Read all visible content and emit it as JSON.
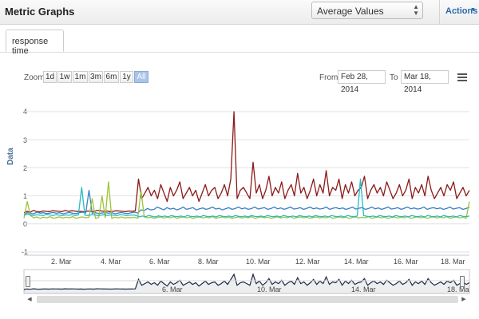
{
  "header": {
    "title": "Metric Graphs",
    "dropdown_value": "Average Values",
    "actions_label": "Actions"
  },
  "tabs": [
    {
      "label": "response time"
    }
  ],
  "toolbar": {
    "zoom_label": "Zoom",
    "zoom_buttons": [
      "1d",
      "1w",
      "1m",
      "3m",
      "6m",
      "1y",
      "All"
    ],
    "active_zoom": "All",
    "from_label": "From",
    "from_value": "Feb 28, 2014",
    "to_label": "To",
    "to_value": "Mar 18, 2014",
    "menu_icon": "menu-icon"
  },
  "navigator": {
    "ticks": [
      "6. Mar",
      "10. Mar",
      "14. Mar",
      "18. Ma"
    ]
  },
  "chart_data": {
    "type": "line",
    "ylabel": "Data",
    "ylim": [
      -1,
      4
    ],
    "yticks": [
      "4",
      "3",
      "2",
      "1",
      "0",
      "-1"
    ],
    "xticks": [
      "2. Mar",
      "4. Mar",
      "6. Mar",
      "8. Mar",
      "10. Mar",
      "12. Mar",
      "14. Mar",
      "16. Mar",
      "18. Mar"
    ],
    "grid": true,
    "series": [
      {
        "color": "#8b1a1a",
        "values": [
          0.4,
          0.45,
          0.42,
          0.48,
          0.44,
          0.43,
          0.46,
          0.45,
          0.44,
          0.47,
          0.46,
          0.45,
          0.44,
          0.48,
          0.45,
          0.47,
          0.46,
          0.44,
          0.45,
          0.43,
          0.46,
          0.45,
          0.44,
          0.48,
          0.47,
          0.45,
          0.46,
          0.44,
          0.45,
          0.47,
          0.46,
          0.45,
          0.44,
          0.46,
          0.45,
          0.47,
          1.6,
          0.9,
          1.1,
          1.3,
          1.0,
          1.2,
          0.9,
          1.4,
          1.1,
          0.8,
          1.3,
          1.0,
          1.2,
          1.5,
          0.9,
          1.1,
          1.3,
          1.0,
          1.2,
          0.8,
          1.1,
          1.4,
          1.0,
          1.2,
          1.3,
          0.9,
          1.1,
          1.4,
          1.0,
          1.6,
          4.0,
          0.9,
          1.2,
          1.3,
          1.1,
          0.9,
          2.2,
          1.1,
          1.4,
          0.9,
          1.2,
          1.7,
          1.0,
          1.3,
          1.1,
          1.5,
          0.9,
          1.2,
          1.4,
          1.0,
          1.8,
          1.1,
          1.3,
          0.9,
          1.2,
          1.6,
          1.0,
          1.4,
          1.1,
          1.9,
          1.0,
          1.3,
          1.2,
          1.6,
          0.9,
          1.4,
          1.1,
          1.5,
          1.0,
          1.2,
          1.3,
          1.7,
          0.9,
          1.2,
          1.4,
          1.1,
          1.3,
          1.0,
          1.5,
          1.2,
          0.9,
          1.1,
          1.4,
          1.0,
          1.2,
          1.6,
          0.9,
          1.3,
          1.1,
          1.4,
          1.0,
          1.7,
          1.2,
          0.9,
          1.1,
          1.3,
          1.0,
          1.4,
          1.2,
          1.5,
          0.9,
          1.1,
          1.3,
          1.0,
          1.2
        ]
      },
      {
        "color": "#3b82c4",
        "values": [
          0.35,
          0.4,
          0.38,
          0.36,
          0.42,
          0.38,
          0.4,
          0.37,
          0.39,
          0.41,
          0.38,
          0.4,
          0.36,
          0.39,
          0.41,
          0.38,
          0.37,
          0.4,
          0.42,
          0.39,
          1.2,
          0.38,
          0.4,
          0.37,
          0.39,
          0.41,
          0.38,
          0.4,
          0.36,
          0.39,
          0.41,
          0.38,
          0.37,
          0.4,
          0.42,
          0.39,
          0.5,
          0.48,
          0.55,
          0.5,
          0.52,
          0.6,
          0.55,
          0.5,
          0.58,
          0.53,
          0.56,
          0.5,
          0.54,
          0.6,
          0.52,
          0.55,
          0.58,
          0.5,
          0.54,
          0.57,
          0.52,
          0.55,
          0.6,
          0.53,
          0.56,
          0.5,
          0.54,
          0.58,
          0.52,
          0.55,
          0.6,
          0.54,
          0.57,
          0.52,
          0.55,
          0.6,
          0.53,
          0.56,
          0.58,
          0.52,
          0.55,
          0.6,
          0.54,
          0.57,
          0.52,
          0.56,
          0.6,
          0.53,
          0.55,
          0.58,
          0.52,
          0.56,
          0.6,
          0.54,
          0.57,
          0.53,
          0.55,
          0.6,
          0.52,
          0.56,
          0.58,
          0.54,
          0.57,
          0.52,
          0.55,
          0.6,
          0.53,
          0.56,
          0.58,
          0.52,
          0.55,
          0.6,
          0.54,
          0.57,
          0.52,
          0.56,
          0.6,
          0.53,
          0.55,
          0.58,
          0.52,
          0.56,
          0.6,
          0.54,
          0.57,
          0.53,
          0.55,
          0.6,
          0.52,
          0.56,
          0.58,
          0.54,
          0.57,
          0.52,
          0.55,
          0.6,
          0.53,
          0.56,
          0.58,
          0.52,
          0.55,
          0.6
        ]
      },
      {
        "color": "#9cc43a",
        "values": [
          0.2,
          0.8,
          0.3,
          0.22,
          0.25,
          0.2,
          0.24,
          0.22,
          0.26,
          0.2,
          0.23,
          0.25,
          0.21,
          0.24,
          0.22,
          0.26,
          0.2,
          0.23,
          0.25,
          0.22,
          0.24,
          0.9,
          0.2,
          0.23,
          1.0,
          0.22,
          1.5,
          0.2,
          0.24,
          0.22,
          0.25,
          0.21,
          0.23,
          0.22,
          0.24,
          0.2,
          1.2,
          0.25,
          0.22,
          0.24,
          0.2,
          0.23,
          0.25,
          0.21,
          0.24,
          0.22,
          0.26,
          0.2,
          0.23,
          0.25,
          0.22,
          0.24,
          0.2,
          0.23,
          0.25,
          0.21,
          0.24,
          0.22,
          0.26,
          0.2,
          0.23,
          0.25,
          0.22,
          0.24,
          0.2,
          0.23,
          0.25,
          0.21,
          0.24,
          0.22,
          0.26,
          0.2,
          0.23,
          0.25,
          0.22,
          0.24,
          0.2,
          0.23,
          0.25,
          0.21,
          0.24,
          0.22,
          0.26,
          0.2,
          0.23,
          0.25,
          0.22,
          0.24,
          0.2,
          0.23,
          0.25,
          0.21,
          0.24,
          0.22,
          0.26,
          0.2,
          0.23,
          0.25,
          0.22,
          0.24,
          0.2,
          0.23,
          0.25,
          0.21,
          0.24,
          0.22,
          0.26,
          0.2,
          0.23,
          0.25,
          0.22,
          0.24,
          0.2,
          0.23,
          0.25,
          0.21,
          0.24,
          0.22,
          0.26,
          0.2,
          0.23,
          0.25,
          0.22,
          0.24,
          0.2,
          0.23,
          0.25,
          0.21,
          0.24,
          0.22,
          0.26,
          0.2,
          0.23,
          0.25,
          0.22,
          0.24,
          0.2,
          0.8
        ]
      },
      {
        "color": "#28b8c8",
        "values": [
          0.3,
          0.35,
          0.32,
          0.3,
          0.33,
          0.31,
          0.3,
          0.34,
          0.32,
          0.3,
          0.33,
          0.31,
          0.3,
          0.32,
          0.31,
          0.33,
          0.3,
          0.32,
          1.3,
          0.31,
          0.3,
          0.33,
          0.32,
          0.3,
          0.31,
          0.33,
          0.3,
          0.32,
          0.31,
          0.3,
          0.33,
          0.32,
          0.3,
          0.31,
          0.32,
          0.3,
          0.25,
          0.28,
          0.26,
          0.3,
          0.27,
          0.25,
          0.29,
          0.26,
          0.28,
          0.25,
          0.3,
          0.27,
          0.26,
          0.28,
          0.25,
          0.3,
          0.27,
          0.26,
          0.28,
          0.25,
          0.3,
          0.27,
          0.26,
          0.28,
          0.25,
          0.3,
          0.27,
          0.26,
          0.28,
          0.25,
          0.3,
          0.27,
          0.26,
          0.28,
          0.25,
          0.3,
          0.27,
          0.26,
          0.28,
          0.25,
          0.3,
          0.27,
          0.26,
          0.28,
          0.25,
          0.3,
          0.27,
          0.26,
          0.28,
          0.25,
          0.3,
          0.27,
          0.26,
          0.28,
          0.25,
          0.3,
          0.27,
          0.26,
          0.28,
          0.25,
          0.3,
          0.27,
          0.26,
          0.28,
          0.25,
          0.3,
          0.27,
          0.26,
          0.28,
          1.6,
          0.3,
          0.27,
          0.26,
          0.28,
          0.25,
          0.3,
          0.27,
          0.26,
          0.28,
          0.25,
          0.3,
          0.27,
          0.26,
          0.28,
          0.25,
          0.3,
          0.27,
          0.26,
          0.28,
          0.25,
          0.3,
          0.27,
          0.26,
          0.28,
          0.25,
          0.3,
          0.27,
          0.26,
          0.28,
          0.25,
          0.3,
          0.27,
          0.26,
          0.28
        ]
      }
    ]
  }
}
